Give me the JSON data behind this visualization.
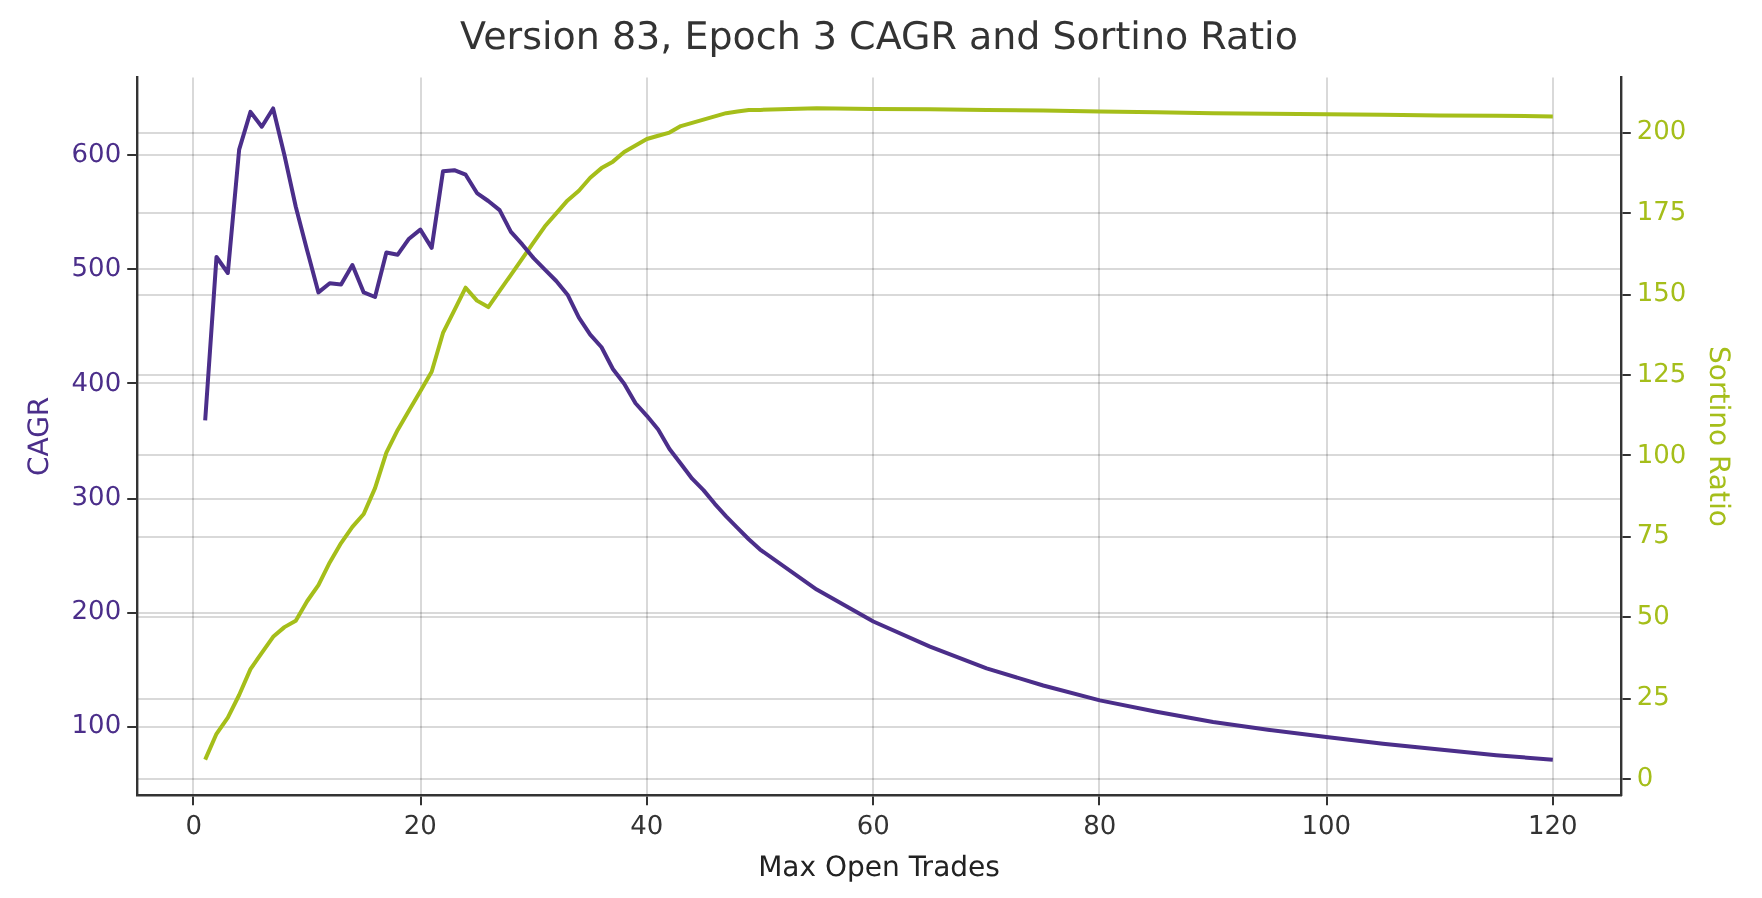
{
  "chart_data": {
    "type": "line",
    "title": "Version 83, Epoch 3 CAGR and Sortino Ratio",
    "xlabel": "Max Open Trades",
    "ylabel": "CAGR",
    "y2label": "Sortino Ratio",
    "x": [
      1,
      2,
      3,
      4,
      5,
      6,
      7,
      8,
      9,
      10,
      11,
      12,
      13,
      14,
      15,
      16,
      17,
      18,
      19,
      20,
      21,
      22,
      23,
      24,
      25,
      26,
      27,
      28,
      29,
      30,
      31,
      32,
      33,
      34,
      35,
      36,
      37,
      38,
      39,
      40,
      41,
      42,
      43,
      44,
      45,
      46,
      47,
      48,
      49,
      50,
      55,
      60,
      65,
      70,
      75,
      80,
      85,
      90,
      95,
      100,
      105,
      110,
      115,
      120
    ],
    "series": [
      {
        "color": "#4b2e8a",
        "values": [
          368,
          511,
          497,
          605,
          638,
          625,
          641,
          600,
          555,
          517,
          480,
          488,
          487,
          504,
          480,
          476,
          515,
          513,
          527,
          535,
          519,
          586,
          587,
          583,
          567,
          560,
          552,
          533,
          522,
          510,
          500,
          490,
          478,
          458,
          443,
          432,
          413,
          400,
          383,
          372,
          360,
          343,
          330,
          317,
          307,
          295,
          284,
          274,
          264,
          255,
          220,
          192,
          170,
          151,
          136,
          123,
          113,
          104,
          97,
          91,
          85,
          80,
          75,
          71
        ]
      },
      {
        "color": "#a5be1a",
        "axis": "y2",
        "values": [
          6,
          14,
          19,
          26,
          34,
          39,
          44,
          47,
          49,
          55,
          60,
          67,
          73,
          78,
          82,
          90,
          101,
          108,
          114,
          120,
          126,
          138,
          145,
          152,
          148,
          146,
          151,
          156,
          161,
          166,
          171,
          175,
          179,
          182,
          186,
          189,
          191,
          194,
          196,
          198,
          199,
          200,
          202,
          203,
          204,
          205,
          206,
          206.5,
          207,
          207,
          207.5,
          207.3,
          207.2,
          207,
          206.8,
          206.5,
          206.3,
          206,
          205.8,
          205.7,
          205.5,
          205.3,
          205.2,
          205
        ]
      }
    ],
    "xlim": [
      -5,
      126
    ],
    "xticks": [
      0,
      20,
      40,
      60,
      80,
      100,
      120
    ],
    "ylim": [
      40,
      668
    ],
    "yticks": [
      100,
      200,
      300,
      400,
      500,
      600
    ],
    "y2lim": [
      -5,
      217
    ],
    "y2ticks": [
      0,
      25,
      50,
      75,
      100,
      125,
      150,
      175,
      200
    ],
    "grid": true,
    "line_style": "solid",
    "marker": "none",
    "legend": false
  }
}
